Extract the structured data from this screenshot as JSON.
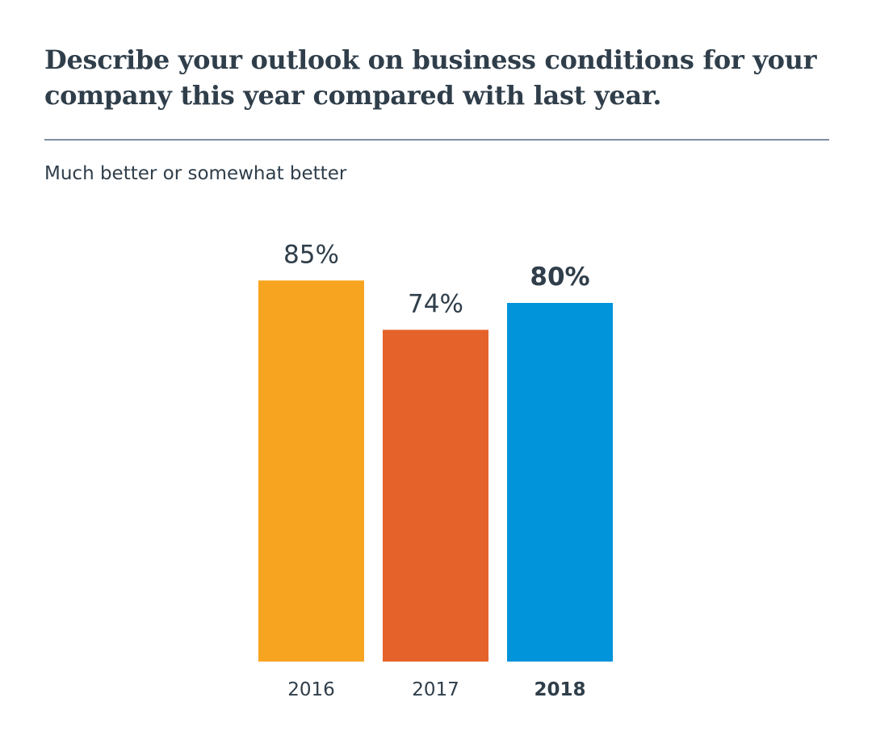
{
  "title": "Describe your outlook on business conditions for your company this year compared with last year.",
  "subtitle": "Much better or somewhat better",
  "colors": {
    "text": "#2f3e4a",
    "divider": "#7d8fa3"
  },
  "chart_data": {
    "type": "bar",
    "title": "Describe your outlook on business conditions for your company this year compared with last year.",
    "subtitle": "Much better or somewhat better",
    "xlabel": "",
    "ylabel": "",
    "ylim": [
      0,
      100
    ],
    "grid": false,
    "categories": [
      "2016",
      "2017",
      "2018"
    ],
    "values": [
      85,
      74,
      80
    ],
    "labels": [
      "85%",
      "74%",
      "80%"
    ],
    "colors": [
      "#f7a520",
      "#e5632a",
      "#0194db"
    ],
    "highlight": "2018"
  }
}
